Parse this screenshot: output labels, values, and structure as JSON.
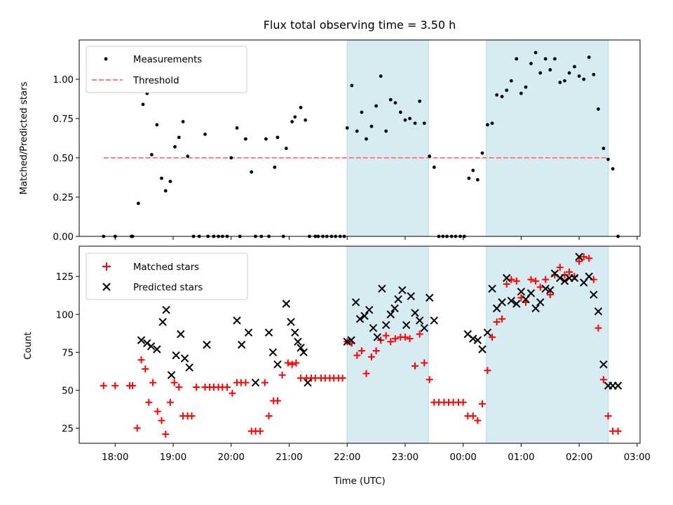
{
  "chart_data": [
    {
      "type": "scatter",
      "title": "Flux total observing time = 3.50 h",
      "ylabel": "Matched/Predicted stars",
      "xlabel": "",
      "x_unit": "hours since 18:00 UTC",
      "xlim": [
        -0.62,
        9.05
      ],
      "ylim": [
        0,
        1.25
      ],
      "yticks": [
        "0.00",
        "0.25",
        "0.50",
        "0.75",
        "1.00"
      ],
      "ytick_values": [
        0,
        0.25,
        0.5,
        0.75,
        1.0
      ],
      "legend": {
        "position": "upper left",
        "entries": [
          "Measurements",
          "Threshold"
        ]
      },
      "shaded_intervals": [
        [
          4.0,
          5.4
        ],
        [
          6.4,
          8.5
        ]
      ],
      "threshold": {
        "name": "Threshold",
        "y": 0.5,
        "x_range": [
          -0.2,
          8.5
        ],
        "color": "#ff7f7f",
        "style": "dashed"
      },
      "series": [
        {
          "name": "Measurements",
          "color": "#000000",
          "marker": "dot",
          "x": [
            -0.2,
            0.0,
            0.28,
            0.3,
            0.4,
            0.48,
            0.55,
            0.63,
            0.72,
            0.8,
            0.87,
            0.95,
            1.03,
            1.1,
            1.17,
            1.25,
            1.35,
            1.45,
            1.55,
            1.6,
            1.7,
            1.78,
            1.85,
            1.93,
            2.0,
            2.1,
            2.15,
            2.25,
            2.35,
            2.42,
            2.52,
            2.6,
            2.65,
            2.75,
            2.8,
            2.9,
            2.95,
            3.05,
            3.1,
            3.2,
            3.28,
            3.35,
            3.45,
            3.5,
            3.58,
            3.65,
            3.73,
            3.8,
            3.88,
            3.95,
            4.0,
            4.08,
            4.17,
            4.25,
            4.33,
            4.42,
            4.5,
            4.58,
            4.67,
            4.75,
            4.83,
            4.92,
            5.0,
            5.08,
            5.17,
            5.25,
            5.33,
            5.42,
            5.5,
            5.58,
            5.65,
            5.72,
            5.8,
            5.87,
            5.95,
            6.02,
            6.1,
            6.17,
            6.25,
            6.33,
            6.42,
            6.5,
            6.58,
            6.67,
            6.75,
            6.83,
            6.92,
            7.0,
            7.08,
            7.17,
            7.25,
            7.33,
            7.42,
            7.5,
            7.58,
            7.67,
            7.75,
            7.83,
            7.92,
            8.0,
            8.08,
            8.17,
            8.25,
            8.33,
            8.42,
            8.5,
            8.58,
            8.67
          ],
          "y": [
            0.0,
            0.0,
            0.0,
            0.0,
            0.21,
            0.84,
            0.91,
            0.52,
            0.71,
            0.37,
            0.29,
            0.35,
            0.57,
            0.63,
            0.73,
            0.51,
            0.0,
            0.0,
            0.65,
            0.0,
            0.0,
            0.0,
            0.0,
            0.0,
            0.5,
            0.69,
            0.0,
            0.62,
            0.41,
            0.0,
            0.0,
            0.62,
            0.0,
            0.44,
            0.63,
            0.0,
            0.56,
            0.73,
            0.76,
            0.82,
            0.74,
            0.0,
            0.0,
            0.0,
            0.0,
            0.0,
            0.0,
            0.0,
            0.0,
            0.0,
            0.69,
            0.96,
            0.67,
            0.79,
            0.62,
            0.7,
            0.83,
            1.02,
            0.67,
            0.87,
            0.85,
            0.79,
            0.74,
            0.75,
            0.72,
            0.86,
            0.72,
            0.51,
            0.44,
            0.0,
            0.0,
            0.0,
            0.0,
            0.0,
            0.0,
            0.0,
            0.37,
            0.42,
            0.36,
            0.53,
            0.71,
            0.72,
            0.9,
            0.89,
            0.93,
            0.99,
            1.13,
            0.91,
            0.95,
            1.1,
            1.17,
            1.04,
            1.13,
            1.06,
            1.13,
            0.98,
            0.99,
            1.04,
            1.08,
            1.02,
            1.0,
            1.14,
            1.03,
            0.81,
            0.56,
            0.49,
            0.43,
            0.0
          ]
        }
      ]
    },
    {
      "type": "scatter",
      "ylabel": "Count",
      "xlabel": "Time (UTC)",
      "x_unit": "hours since 18:00 UTC",
      "xlim": [
        -0.62,
        9.05
      ],
      "ylim": [
        15,
        145
      ],
      "yticks": [
        "25",
        "50",
        "75",
        "100",
        "125"
      ],
      "ytick_values": [
        25,
        50,
        75,
        100,
        125
      ],
      "xticks": [
        "18:00",
        "19:00",
        "20:00",
        "21:00",
        "22:00",
        "23:00",
        "00:00",
        "01:00",
        "02:00",
        "03:00"
      ],
      "xtick_values": [
        0,
        1,
        2,
        3,
        4,
        5,
        6,
        7,
        8,
        9
      ],
      "legend": {
        "position": "upper left",
        "entries": [
          "Matched stars",
          "Predicted stars"
        ]
      },
      "shaded_intervals": [
        [
          4.0,
          5.4
        ],
        [
          6.4,
          8.5
        ]
      ],
      "series": [
        {
          "name": "Matched stars",
          "color": "#ff0000",
          "marker": "plus",
          "x": [
            -0.2,
            0.0,
            0.25,
            0.3,
            0.38,
            0.45,
            0.52,
            0.58,
            0.65,
            0.73,
            0.8,
            0.87,
            0.95,
            1.02,
            1.1,
            1.17,
            1.25,
            1.32,
            1.4,
            1.55,
            1.63,
            1.7,
            1.78,
            1.85,
            1.93,
            2.02,
            2.1,
            2.17,
            2.25,
            2.35,
            2.42,
            2.5,
            2.58,
            2.65,
            2.73,
            2.8,
            2.88,
            2.98,
            3.05,
            3.12,
            3.2,
            3.3,
            3.38,
            3.45,
            3.55,
            3.62,
            3.7,
            3.77,
            3.85,
            3.92,
            4.0,
            4.08,
            4.17,
            4.25,
            4.33,
            4.42,
            4.5,
            4.58,
            4.67,
            4.75,
            4.83,
            4.92,
            5.0,
            5.08,
            5.17,
            5.25,
            5.33,
            5.42,
            5.5,
            5.58,
            5.67,
            5.75,
            5.83,
            5.92,
            6.0,
            6.08,
            6.17,
            6.25,
            6.33,
            6.42,
            6.5,
            6.58,
            6.67,
            6.75,
            6.83,
            6.92,
            7.0,
            7.08,
            7.17,
            7.25,
            7.33,
            7.42,
            7.5,
            7.58,
            7.67,
            7.75,
            7.83,
            7.92,
            8.0,
            8.08,
            8.17,
            8.25,
            8.33,
            8.42,
            8.5,
            8.58,
            8.67
          ],
          "y": [
            53,
            53,
            53,
            53,
            25,
            70,
            64,
            42,
            55,
            36,
            30,
            21,
            42,
            55,
            52,
            33,
            33,
            33,
            52,
            52,
            52,
            52,
            52,
            52,
            52,
            48,
            55,
            55,
            55,
            23,
            23,
            23,
            55,
            33,
            43,
            43,
            60,
            68,
            67,
            68,
            58,
            58,
            58,
            58,
            58,
            58,
            58,
            58,
            58,
            58,
            82,
            81,
            73,
            76,
            61,
            72,
            76,
            83,
            86,
            82,
            84,
            85,
            85,
            84,
            66,
            87,
            68,
            57,
            42,
            42,
            42,
            42,
            42,
            42,
            42,
            33,
            33,
            30,
            41,
            63,
            85,
            95,
            97,
            120,
            123,
            122,
            111,
            108,
            123,
            122,
            118,
            123,
            113,
            126,
            131,
            126,
            128,
            125,
            135,
            138,
            137,
            123,
            91,
            57,
            33,
            23,
            23
          ]
        },
        {
          "name": "Predicted stars",
          "color": "#000000",
          "marker": "x",
          "x": [
            0.45,
            0.55,
            0.62,
            0.72,
            0.82,
            0.88,
            0.97,
            1.05,
            1.13,
            1.2,
            1.28,
            1.58,
            2.1,
            2.18,
            2.3,
            2.42,
            2.65,
            2.72,
            2.8,
            2.95,
            3.03,
            3.1,
            3.15,
            3.2,
            3.25,
            3.32,
            4.0,
            4.07,
            4.15,
            4.22,
            4.3,
            4.38,
            4.45,
            4.52,
            4.6,
            4.67,
            4.75,
            4.82,
            4.88,
            4.95,
            5.02,
            5.1,
            5.17,
            5.25,
            5.33,
            5.42,
            5.5,
            6.08,
            6.17,
            6.25,
            6.33,
            6.42,
            6.5,
            6.58,
            6.67,
            6.75,
            6.83,
            6.92,
            7.0,
            7.08,
            7.17,
            7.25,
            7.33,
            7.42,
            7.5,
            7.58,
            7.67,
            7.75,
            7.83,
            7.92,
            8.0,
            8.08,
            8.17,
            8.25,
            8.33,
            8.42,
            8.5,
            8.58,
            8.67
          ],
          "y": [
            83,
            81,
            79,
            77,
            95,
            103,
            60,
            73,
            87,
            71,
            65,
            80,
            96,
            80,
            88,
            55,
            88,
            75,
            67,
            107,
            95,
            88,
            82,
            78,
            75,
            55,
            82,
            83,
            108,
            97,
            99,
            103,
            91,
            85,
            117,
            93,
            100,
            104,
            110,
            116,
            93,
            112,
            101,
            96,
            91,
            111,
            96,
            87,
            84,
            83,
            77,
            88,
            117,
            104,
            108,
            124,
            109,
            107,
            115,
            110,
            114,
            104,
            108,
            117,
            116,
            127,
            124,
            122,
            124,
            124,
            138,
            121,
            125,
            113,
            102,
            67,
            53,
            53,
            53
          ]
        }
      ]
    }
  ]
}
